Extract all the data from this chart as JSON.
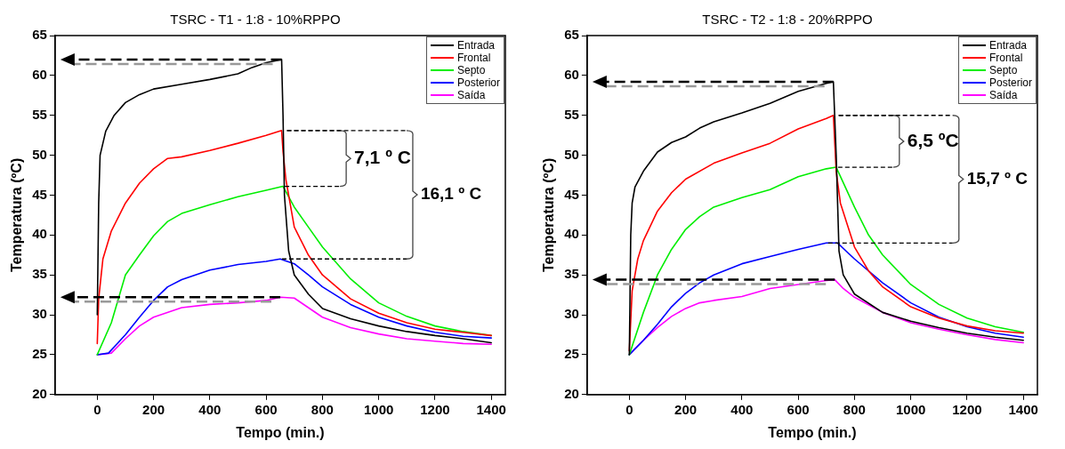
{
  "chart_data": [
    {
      "type": "line",
      "title": "TSRC - T1 - 1:8 - 10%RPPO",
      "xlabel": "Tempo (min.)",
      "ylabel": "Temperatura (ºC)",
      "xlim": [
        -150,
        1450
      ],
      "xticks": [
        0,
        200,
        400,
        600,
        800,
        1000,
        1200,
        1400
      ],
      "ylim": [
        20,
        65
      ],
      "yticks": [
        20,
        25,
        30,
        35,
        40,
        45,
        50,
        55,
        60,
        65
      ],
      "grid": false,
      "legend": "top right",
      "marker": "none",
      "line_style": "solid",
      "annotations": [
        {
          "text": "7,1 º C",
          "x": 660,
          "y": 46.1
        },
        "16,1 º C"
      ],
      "series": [
        {
          "name": "Entrada",
          "color": "#000000",
          "x": [
            0,
            5,
            10,
            30,
            60,
            100,
            150,
            200,
            300,
            400,
            500,
            550,
            600,
            655,
            660,
            665,
            680,
            700,
            750,
            800,
            900,
            1000,
            1100,
            1200,
            1300,
            1400
          ],
          "values": [
            30,
            44,
            50,
            53,
            55,
            56.6,
            57.6,
            58.3,
            58.9,
            59.5,
            60.2,
            61,
            61.6,
            62,
            55,
            45,
            38,
            35,
            32.6,
            30.8,
            29.5,
            28.6,
            27.9,
            27.4,
            27,
            26.5
          ]
        },
        {
          "name": "Frontal",
          "color": "#ff0000",
          "x": [
            0,
            5,
            20,
            50,
            100,
            150,
            200,
            250,
            300,
            400,
            500,
            600,
            655,
            660,
            670,
            700,
            750,
            800,
            900,
            1000,
            1100,
            1200,
            1300,
            1400
          ],
          "values": [
            26.4,
            32,
            37,
            40.5,
            44,
            46.5,
            48.3,
            49.6,
            49.8,
            50.6,
            51.5,
            52.5,
            53.1,
            50.5,
            47,
            41,
            37.5,
            35,
            32,
            30.2,
            29,
            28.2,
            27.8,
            27.4
          ]
        },
        {
          "name": "Septo",
          "color": "#00ee00",
          "x": [
            0,
            50,
            100,
            150,
            200,
            250,
            300,
            400,
            500,
            600,
            660,
            700,
            750,
            800,
            900,
            1000,
            1100,
            1200,
            1300,
            1400
          ],
          "values": [
            25,
            29,
            35,
            37.5,
            39.9,
            41.7,
            42.7,
            43.8,
            44.8,
            45.6,
            46.1,
            43.5,
            41,
            38.5,
            34.5,
            31.5,
            29.8,
            28.6,
            27.9,
            27.4
          ]
        },
        {
          "name": "Posterior",
          "color": "#0000ff",
          "x": [
            0,
            40,
            100,
            150,
            200,
            250,
            300,
            400,
            500,
            600,
            650,
            700,
            750,
            800,
            900,
            1000,
            1100,
            1200,
            1300,
            1400
          ],
          "values": [
            25,
            25.2,
            27.5,
            29.7,
            31.8,
            33.5,
            34.4,
            35.6,
            36.3,
            36.7,
            37,
            36.4,
            35,
            33.5,
            31.3,
            29.7,
            28.6,
            27.8,
            27.3,
            27.1
          ]
        },
        {
          "name": "Saída",
          "color": "#ff00ff",
          "x": [
            0,
            50,
            100,
            150,
            200,
            300,
            400,
            500,
            600,
            650,
            700,
            750,
            800,
            900,
            1000,
            1100,
            1200,
            1300,
            1400
          ],
          "values": [
            25,
            25.2,
            27,
            28.6,
            29.7,
            30.9,
            31.3,
            31.5,
            31.8,
            32.2,
            32.1,
            30.9,
            29.7,
            28.4,
            27.6,
            27,
            26.7,
            26.4,
            26.3
          ]
        }
      ]
    },
    {
      "type": "line",
      "title": "TSRC - T2 - 1:8 - 20%RPPO",
      "xlabel": "Tempo (min.)",
      "ylabel": "Temperatura (ºC)",
      "xlim": [
        -150,
        1450
      ],
      "xticks": [
        0,
        200,
        400,
        600,
        800,
        1000,
        1200,
        1400
      ],
      "ylim": [
        20,
        65
      ],
      "yticks": [
        20,
        25,
        30,
        35,
        40,
        45,
        50,
        55,
        60,
        65
      ],
      "grid": false,
      "legend": "top right",
      "marker": "none",
      "line_style": "solid",
      "annotations": [
        {
          "text": "6,5 ºC",
          "x": 735,
          "y": 48.5
        },
        "15,7 º C"
      ],
      "series": [
        {
          "name": "Entrada",
          "color": "#000000",
          "x": [
            0,
            5,
            10,
            20,
            50,
            100,
            150,
            200,
            250,
            300,
            400,
            500,
            600,
            700,
            725,
            735,
            745,
            760,
            800,
            900,
            1000,
            1100,
            1200,
            1300,
            1400
          ],
          "values": [
            25,
            40,
            44,
            46,
            48,
            50.4,
            51.6,
            52.3,
            53.4,
            54.2,
            55.3,
            56.5,
            58,
            59,
            59.2,
            50,
            38,
            35,
            32.6,
            30.3,
            29.2,
            28.4,
            27.7,
            27.2,
            26.8
          ]
        },
        {
          "name": "Frontal",
          "color": "#ff0000",
          "x": [
            0,
            10,
            30,
            50,
            100,
            150,
            200,
            300,
            400,
            500,
            600,
            700,
            725,
            735,
            750,
            800,
            850,
            900,
            1000,
            1100,
            1200,
            1300,
            1400
          ],
          "values": [
            25.5,
            33,
            37,
            39.3,
            43,
            45.3,
            47,
            49,
            50.3,
            51.5,
            53.3,
            54.6,
            55,
            48,
            44,
            38.5,
            35.5,
            33.5,
            31,
            29.6,
            28.6,
            28,
            27.7
          ]
        },
        {
          "name": "Septo",
          "color": "#00ee00",
          "x": [
            0,
            50,
            100,
            150,
            200,
            250,
            300,
            400,
            500,
            600,
            700,
            735,
            800,
            850,
            900,
            1000,
            1100,
            1200,
            1300,
            1400
          ],
          "values": [
            25,
            30.3,
            35,
            38.2,
            40.7,
            42.3,
            43.5,
            44.7,
            45.7,
            47.3,
            48.3,
            48.5,
            43.5,
            40,
            37.5,
            33.8,
            31.3,
            29.6,
            28.5,
            27.8
          ]
        },
        {
          "name": "Posterior",
          "color": "#0000ff",
          "x": [
            0,
            50,
            100,
            150,
            200,
            250,
            300,
            400,
            500,
            600,
            700,
            740,
            800,
            900,
            1000,
            1100,
            1200,
            1300,
            1400
          ],
          "values": [
            25,
            26.8,
            28.8,
            31,
            32.7,
            34,
            35,
            36.4,
            37.3,
            38.2,
            39,
            39,
            37,
            34,
            31.5,
            29.7,
            28.5,
            27.7,
            27.2
          ]
        },
        {
          "name": "Saída",
          "color": "#ff00ff",
          "x": [
            0,
            50,
            100,
            150,
            200,
            250,
            300,
            400,
            500,
            600,
            700,
            730,
            760,
            800,
            900,
            1000,
            1100,
            1200,
            1300,
            1400
          ],
          "values": [
            25,
            26.8,
            28.4,
            29.8,
            30.8,
            31.5,
            31.8,
            32.3,
            33.3,
            33.8,
            34.3,
            34.4,
            33.3,
            32.2,
            30.3,
            29,
            28.2,
            27.5,
            26.9,
            26.5
          ]
        }
      ]
    }
  ]
}
